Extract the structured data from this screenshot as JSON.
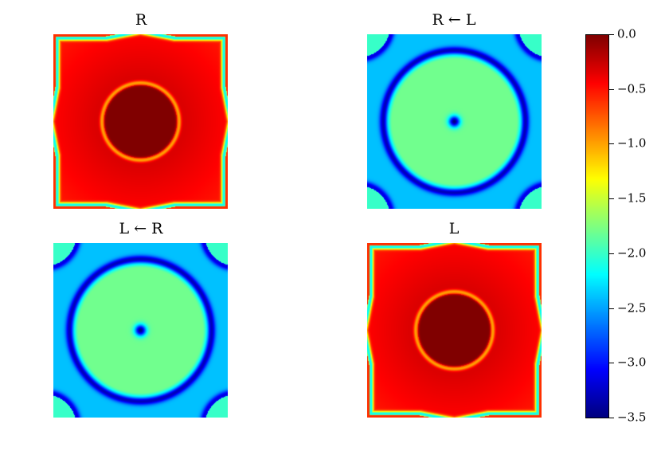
{
  "chart_data": [
    {
      "type": "heatmap",
      "title": "R",
      "field": {
        "center_value": 0.0,
        "ring_value": -1.0,
        "plateau_value": -0.3,
        "outer_band_value": -2.2,
        "corner_value": -0.6
      }
    },
    {
      "type": "heatmap",
      "title": "R ← L",
      "field": {
        "center_value": -3.5,
        "inner_value": -1.8,
        "ring_value": -3.3,
        "outer_value": -2.4,
        "corner_value": -2.0
      }
    },
    {
      "type": "heatmap",
      "title": "L ← R",
      "field": {
        "center_value": -3.5,
        "inner_value": -1.8,
        "ring_value": -3.3,
        "outer_value": -2.4,
        "corner_value": -2.0
      }
    },
    {
      "type": "heatmap",
      "title": "L",
      "field": {
        "center_value": 0.0,
        "ring_value": -1.0,
        "plateau_value": -0.3,
        "outer_band_value": -2.2,
        "corner_value": -0.6
      }
    }
  ],
  "colorbar": {
    "colormap": "jet",
    "vmin": -3.5,
    "vmax": 0.0,
    "ticks": [
      {
        "value": 0.0,
        "label": "0.0"
      },
      {
        "value": -0.5,
        "label": "−0.5"
      },
      {
        "value": -1.0,
        "label": "−1.0"
      },
      {
        "value": -1.5,
        "label": "−1.5"
      },
      {
        "value": -2.0,
        "label": "−2.0"
      },
      {
        "value": -2.5,
        "label": "−2.5"
      },
      {
        "value": -3.0,
        "label": "−3.0"
      },
      {
        "value": -3.5,
        "label": "−3.5"
      }
    ]
  }
}
